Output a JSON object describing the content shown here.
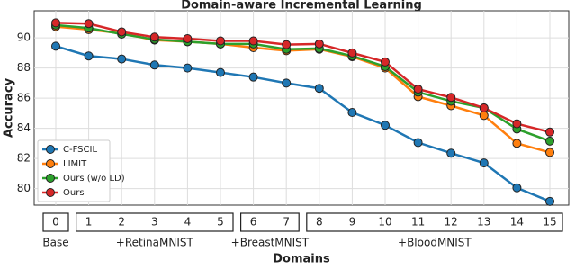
{
  "chart_data": {
    "type": "line",
    "title": "Domain-aware Incremental Learning",
    "x_label": "Domains",
    "y_label": "Accuracy",
    "categories": [
      "0",
      "1",
      "2",
      "3",
      "4",
      "5",
      "6",
      "7",
      "8",
      "9",
      "10",
      "11",
      "12",
      "13",
      "14",
      "15"
    ],
    "groups": [
      {
        "label": "Base",
        "from": 0,
        "to": 0
      },
      {
        "label": "+RetinaMNIST",
        "from": 1,
        "to": 5
      },
      {
        "label": "+BreastMNIST",
        "from": 6,
        "to": 7
      },
      {
        "label": "+BloodMNIST",
        "from": 8,
        "to": 15
      }
    ],
    "series": [
      {
        "name": "C-FSCIL",
        "color": "#1f77b4",
        "values": [
          89.45,
          88.8,
          88.6,
          88.2,
          88.0,
          87.7,
          87.4,
          87.0,
          86.65,
          85.05,
          84.2,
          83.05,
          82.35,
          81.7,
          80.05,
          79.15
        ]
      },
      {
        "name": "LIMIT",
        "color": "#ff7f0e",
        "values": [
          90.75,
          90.55,
          90.3,
          89.85,
          89.75,
          89.6,
          89.35,
          89.15,
          89.25,
          88.75,
          88.0,
          86.1,
          85.5,
          84.85,
          83.0,
          82.4
        ]
      },
      {
        "name": "Ours (w/o LD)",
        "color": "#2ca02c",
        "values": [
          90.85,
          90.65,
          90.25,
          89.9,
          89.75,
          89.6,
          89.6,
          89.25,
          89.3,
          88.8,
          88.1,
          86.4,
          85.8,
          85.35,
          83.95,
          83.15
        ]
      },
      {
        "name": "Ours",
        "color": "#d62728",
        "values": [
          91.0,
          90.95,
          90.4,
          90.05,
          89.95,
          89.8,
          89.8,
          89.55,
          89.6,
          89.0,
          88.4,
          86.6,
          86.05,
          85.35,
          84.3,
          83.75
        ]
      }
    ],
    "ylim": [
      78.9,
      91.8
    ],
    "yticks": [
      80,
      82,
      84,
      86,
      88,
      90
    ],
    "grid": true,
    "legend": "lower left"
  }
}
